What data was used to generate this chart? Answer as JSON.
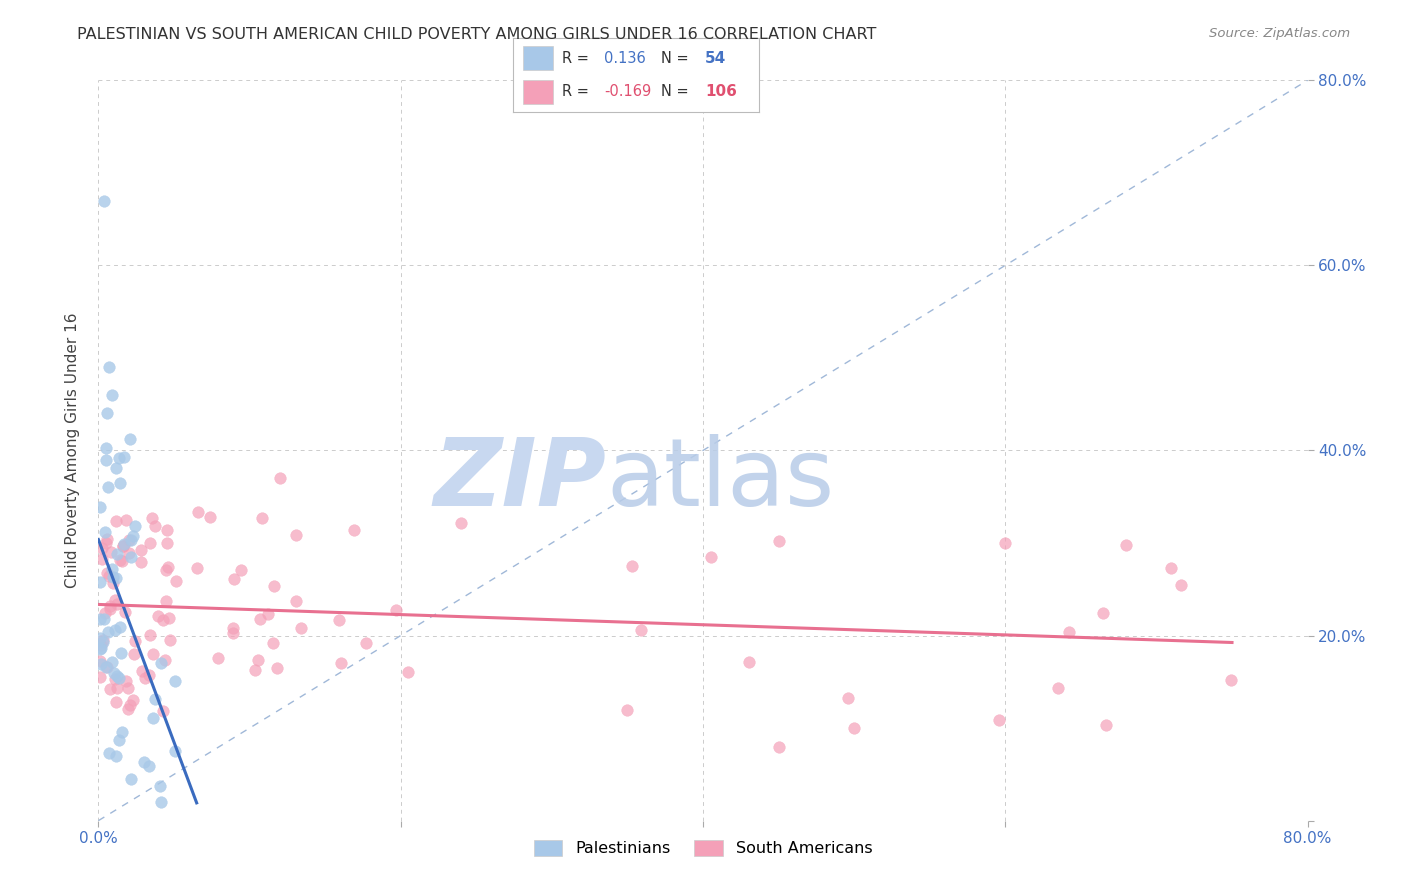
{
  "title": "PALESTINIAN VS SOUTH AMERICAN CHILD POVERTY AMONG GIRLS UNDER 16 CORRELATION CHART",
  "source": "Source: ZipAtlas.com",
  "ylabel": "Child Poverty Among Girls Under 16",
  "xlim": [
    0.0,
    0.8
  ],
  "ylim": [
    0.0,
    0.8
  ],
  "x_ticks": [
    0.0,
    0.2,
    0.4,
    0.6,
    0.8
  ],
  "y_ticks": [
    0.0,
    0.2,
    0.4,
    0.6,
    0.8
  ],
  "x_tick_labels": [
    "0.0%",
    "",
    "",
    "",
    "80.0%"
  ],
  "y_tick_labels_right": [
    "",
    "20.0%",
    "40.0%",
    "60.0%",
    "80.0%"
  ],
  "palestinians_R": 0.136,
  "palestinians_N": 54,
  "south_americans_R": -0.169,
  "south_americans_N": 106,
  "palestinian_color": "#a8c8e8",
  "south_american_color": "#f4a0b8",
  "trend_pal_color": "#3a6bbf",
  "trend_sa_color": "#e87090",
  "diagonal_color": "#a0b8d8",
  "background_color": "#ffffff",
  "grid_color": "#cccccc",
  "tick_color": "#4472c4",
  "watermark_zip_color": "#c8d8f0",
  "watermark_atlas_color": "#b8cce8"
}
